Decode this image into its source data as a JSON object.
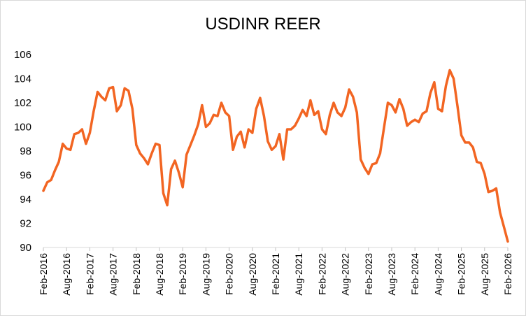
{
  "chart_data": {
    "type": "line",
    "title": "USDINR REER",
    "xlabel": "",
    "ylabel": "",
    "ylim": [
      90,
      106
    ],
    "yticks": [
      90,
      92,
      94,
      96,
      98,
      100,
      102,
      104,
      106
    ],
    "xtick_labels": [
      "Feb-2016",
      "Aug-2016",
      "Feb-2017",
      "Aug-2017",
      "Feb-2018",
      "Aug-2018",
      "Feb-2019",
      "Aug-2019",
      "Feb-2020",
      "Aug-2020",
      "Feb-2021",
      "Aug-2021",
      "Feb-2022",
      "Aug-2022",
      "Feb-2023",
      "Aug-2023",
      "Feb-2024",
      "Aug-2024",
      "Feb-2025",
      "Aug-2025",
      "Feb-2026"
    ],
    "grid": false,
    "legend": "none",
    "line_color": "#f26522",
    "series": [
      {
        "values": [
          94.7,
          95.4,
          95.6,
          96.4,
          97.1,
          98.6,
          98.2,
          98.1,
          99.4,
          99.5,
          99.8,
          98.6,
          99.5,
          101.3,
          102.9,
          102.5,
          102.2,
          103.2,
          103.3,
          101.3,
          101.8,
          103.2,
          103.0,
          101.5,
          98.5,
          97.8,
          97.4,
          96.9,
          97.8,
          98.6,
          98.5,
          94.5,
          93.5,
          96.5,
          97.2,
          96.2,
          95.0,
          97.7,
          98.5,
          99.3,
          100.2,
          101.8,
          100.0,
          100.3,
          101.0,
          100.9,
          102.0,
          101.2,
          100.9,
          98.1,
          99.2,
          99.6,
          98.3,
          99.8,
          99.5,
          101.5,
          102.4,
          100.9,
          98.8,
          98.1,
          98.4,
          99.4,
          97.3,
          99.8,
          99.8,
          100.1,
          100.7,
          101.4,
          100.9,
          102.2,
          101.0,
          101.3,
          99.8,
          99.4,
          101.0,
          102.0,
          101.2,
          100.9,
          101.6,
          103.1,
          102.5,
          101.2,
          97.3,
          96.6,
          96.1,
          96.9,
          97.0,
          97.8,
          99.9,
          102.0,
          101.8,
          101.2,
          102.3,
          101.5,
          100.1,
          100.4,
          100.6,
          100.4,
          101.1,
          101.3,
          102.8,
          103.7,
          101.5,
          101.3,
          103.4,
          104.7,
          104.0,
          101.7,
          99.3,
          98.7,
          98.7,
          98.3,
          97.1,
          97.0,
          96.1,
          94.6,
          94.7,
          94.9,
          92.9,
          91.7,
          90.5
        ]
      }
    ]
  }
}
